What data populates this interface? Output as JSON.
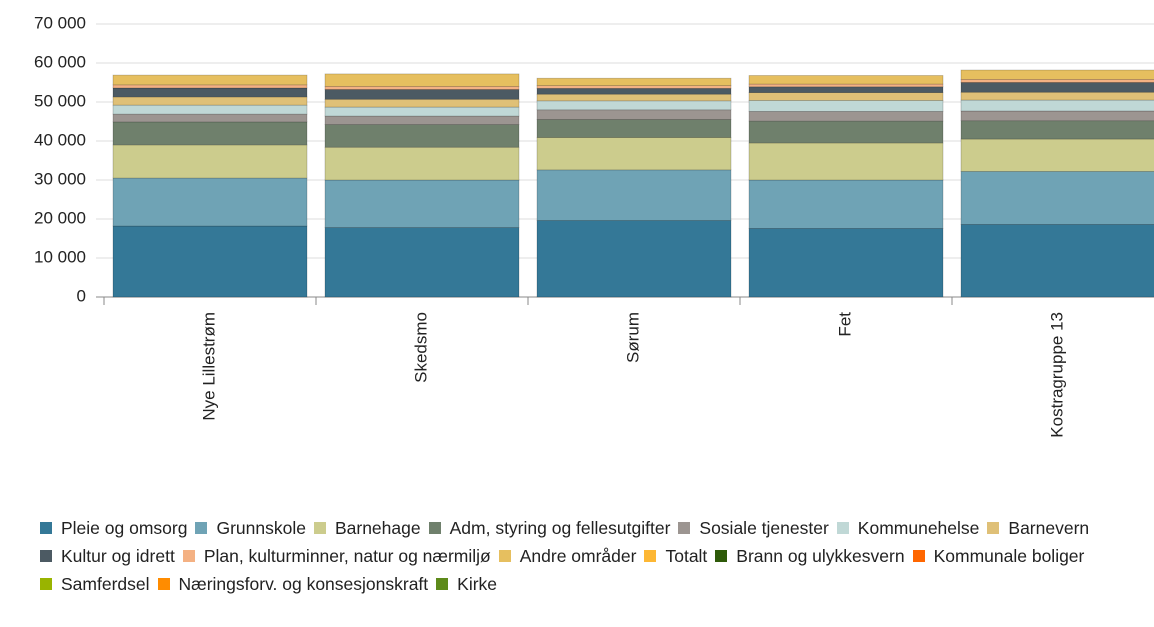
{
  "chart_data": {
    "type": "stacked_bar",
    "categories": [
      "Nye Lillestrøm",
      "Skedsmo",
      "Sørum",
      "Fet",
      "Kostragruppe 13"
    ],
    "ylim": [
      0,
      70000
    ],
    "yticks": [
      {
        "value": 0,
        "label": "0"
      },
      {
        "value": 10000,
        "label": "10 000"
      },
      {
        "value": 20000,
        "label": "20 000"
      },
      {
        "value": 30000,
        "label": "30 000"
      },
      {
        "value": 40000,
        "label": "40 000"
      },
      {
        "value": 50000,
        "label": "50 000"
      },
      {
        "value": 60000,
        "label": "60 000"
      },
      {
        "value": 70000,
        "label": "70 000"
      }
    ],
    "grid": true,
    "series": [
      {
        "name": "Pleie og omsorg",
        "color": "#347897",
        "values": [
          18200,
          17800,
          19600,
          17600,
          18600
        ]
      },
      {
        "name": "Grunnskole",
        "color": "#6fa3b5",
        "values": [
          12300,
          12200,
          13000,
          12400,
          13600
        ]
      },
      {
        "name": "Barnehage",
        "color": "#cccc8d",
        "values": [
          8500,
          8400,
          8300,
          9500,
          8300
        ]
      },
      {
        "name": "Adm, styring og fellesutgifter",
        "color": "#6f806c",
        "values": [
          5900,
          5800,
          4600,
          5600,
          4700
        ]
      },
      {
        "name": "Sosiale tjenester",
        "color": "#9c9591",
        "values": [
          2000,
          2200,
          2500,
          2500,
          2500
        ]
      },
      {
        "name": "Kommunehelse",
        "color": "#c0d8d6",
        "values": [
          2300,
          2300,
          2300,
          2800,
          2800
        ]
      },
      {
        "name": "Barnevern",
        "color": "#dfc077",
        "values": [
          2100,
          2000,
          1700,
          2000,
          2000
        ]
      },
      {
        "name": "Kultur og idrett",
        "color": "#4c5a63",
        "values": [
          2300,
          2500,
          1500,
          1500,
          2500
        ]
      },
      {
        "name": "Plan, kulturminner, natur og nærmiljø",
        "color": "#f4b183",
        "values": [
          800,
          800,
          700,
          700,
          800
        ]
      },
      {
        "name": "Andre områder",
        "color": "#e6bf5f",
        "values": [
          2500,
          3200,
          1900,
          2200,
          2400
        ]
      },
      {
        "name": "Totalt",
        "color": "#fdb734",
        "values": [
          null,
          null,
          null,
          null,
          null
        ]
      },
      {
        "name": "Brann og ulykkesvern",
        "color": "#2e5a09",
        "values": [
          null,
          null,
          null,
          null,
          null
        ]
      },
      {
        "name": "Kommunale boliger",
        "color": "#ff6600",
        "values": [
          null,
          null,
          null,
          null,
          null
        ]
      },
      {
        "name": "Samferdsel",
        "color": "#99b400",
        "values": [
          null,
          null,
          null,
          null,
          null
        ]
      },
      {
        "name": "Næringsforv. og konsesjonskraft",
        "color": "#ff8c00",
        "values": [
          null,
          null,
          null,
          null,
          null
        ]
      },
      {
        "name": "Kirke",
        "color": "#5d8a1a",
        "values": [
          null,
          null,
          null,
          null,
          null
        ]
      }
    ]
  }
}
